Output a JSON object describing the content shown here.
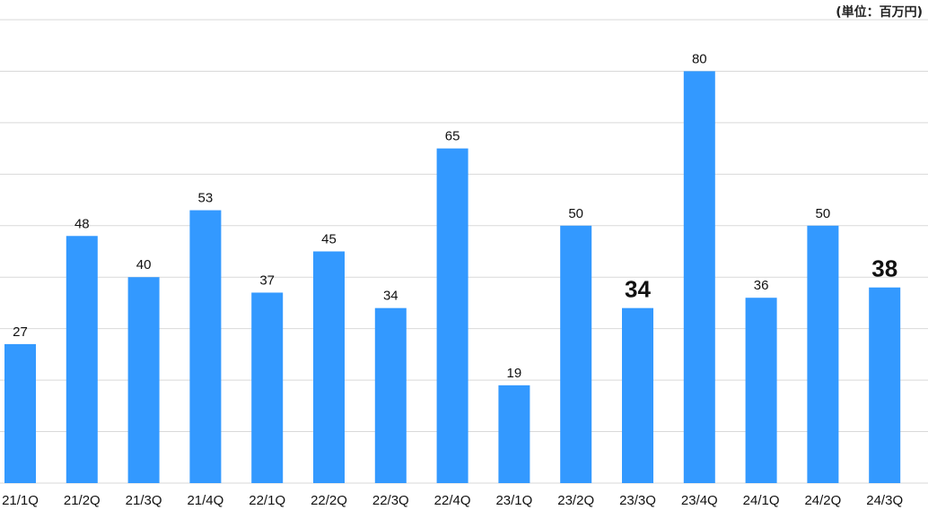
{
  "unit_label": "(単位：百万円)",
  "colors": {
    "bar": "#3399ff",
    "grid": "#d9d9d9"
  },
  "chart_data": {
    "type": "bar",
    "title": "",
    "xlabel": "",
    "ylabel": "",
    "ylim": [
      0,
      90
    ],
    "grid": true,
    "categories": [
      "21/1Q",
      "21/2Q",
      "21/3Q",
      "21/4Q",
      "22/1Q",
      "22/2Q",
      "22/3Q",
      "22/4Q",
      "23/1Q",
      "23/2Q",
      "23/3Q",
      "23/4Q",
      "24/1Q",
      "24/2Q",
      "24/3Q"
    ],
    "values": [
      27,
      48,
      40,
      53,
      37,
      45,
      34,
      65,
      19,
      50,
      34,
      80,
      36,
      50,
      38
    ],
    "emphasized_labels": [
      "23/3Q",
      "24/3Q"
    ]
  }
}
